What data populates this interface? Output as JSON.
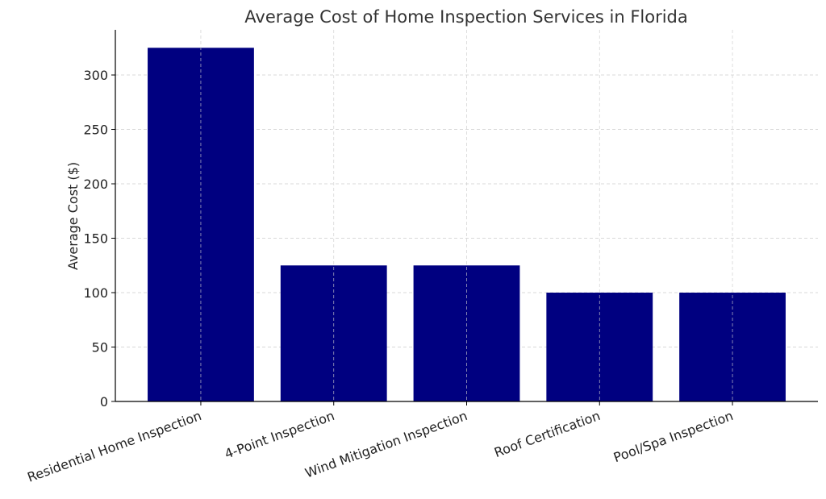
{
  "chart_data": {
    "type": "bar",
    "title": "Average Cost of Home Inspection Services in Florida",
    "xlabel": "",
    "ylabel": "Average Cost ($)",
    "categories": [
      "Residential Home Inspection",
      "4-Point Inspection",
      "Wind Mitigation Inspection",
      "Roof Certification",
      "Pool/Spa Inspection"
    ],
    "values": [
      325,
      125,
      125,
      100,
      100
    ],
    "ylim": [
      0,
      341.5
    ],
    "yticks": [
      0,
      50,
      100,
      150,
      200,
      250,
      300
    ],
    "grid": true,
    "bar_color": "#000080",
    "grid_color": "#cccccc"
  }
}
